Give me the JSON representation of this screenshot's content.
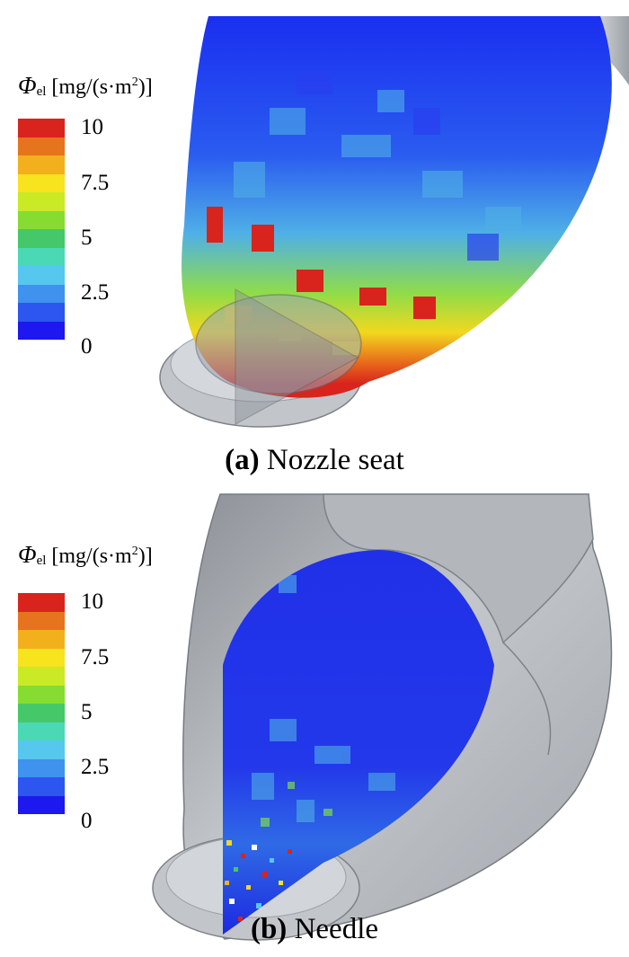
{
  "colorbar": {
    "symbol": "Φ",
    "subscript": "el",
    "unit_open": " [mg/(s·m",
    "unit_exp": "2",
    "unit_close": ")]",
    "ticks": [
      "10",
      "7.5",
      "5",
      "2.5",
      "0"
    ],
    "range": [
      0,
      10
    ],
    "colors": [
      "#d8241c",
      "#e6731e",
      "#f2b01d",
      "#f7e31e",
      "#c9ea25",
      "#86dc30",
      "#45c86a",
      "#4bd8b4",
      "#56c8ee",
      "#3f92ee",
      "#2d55f0",
      "#1d17f0"
    ]
  },
  "panel_a": {
    "label": "(a)",
    "text": " Nozzle seat"
  },
  "panel_b": {
    "label": "(b)",
    "text": " Needle"
  }
}
